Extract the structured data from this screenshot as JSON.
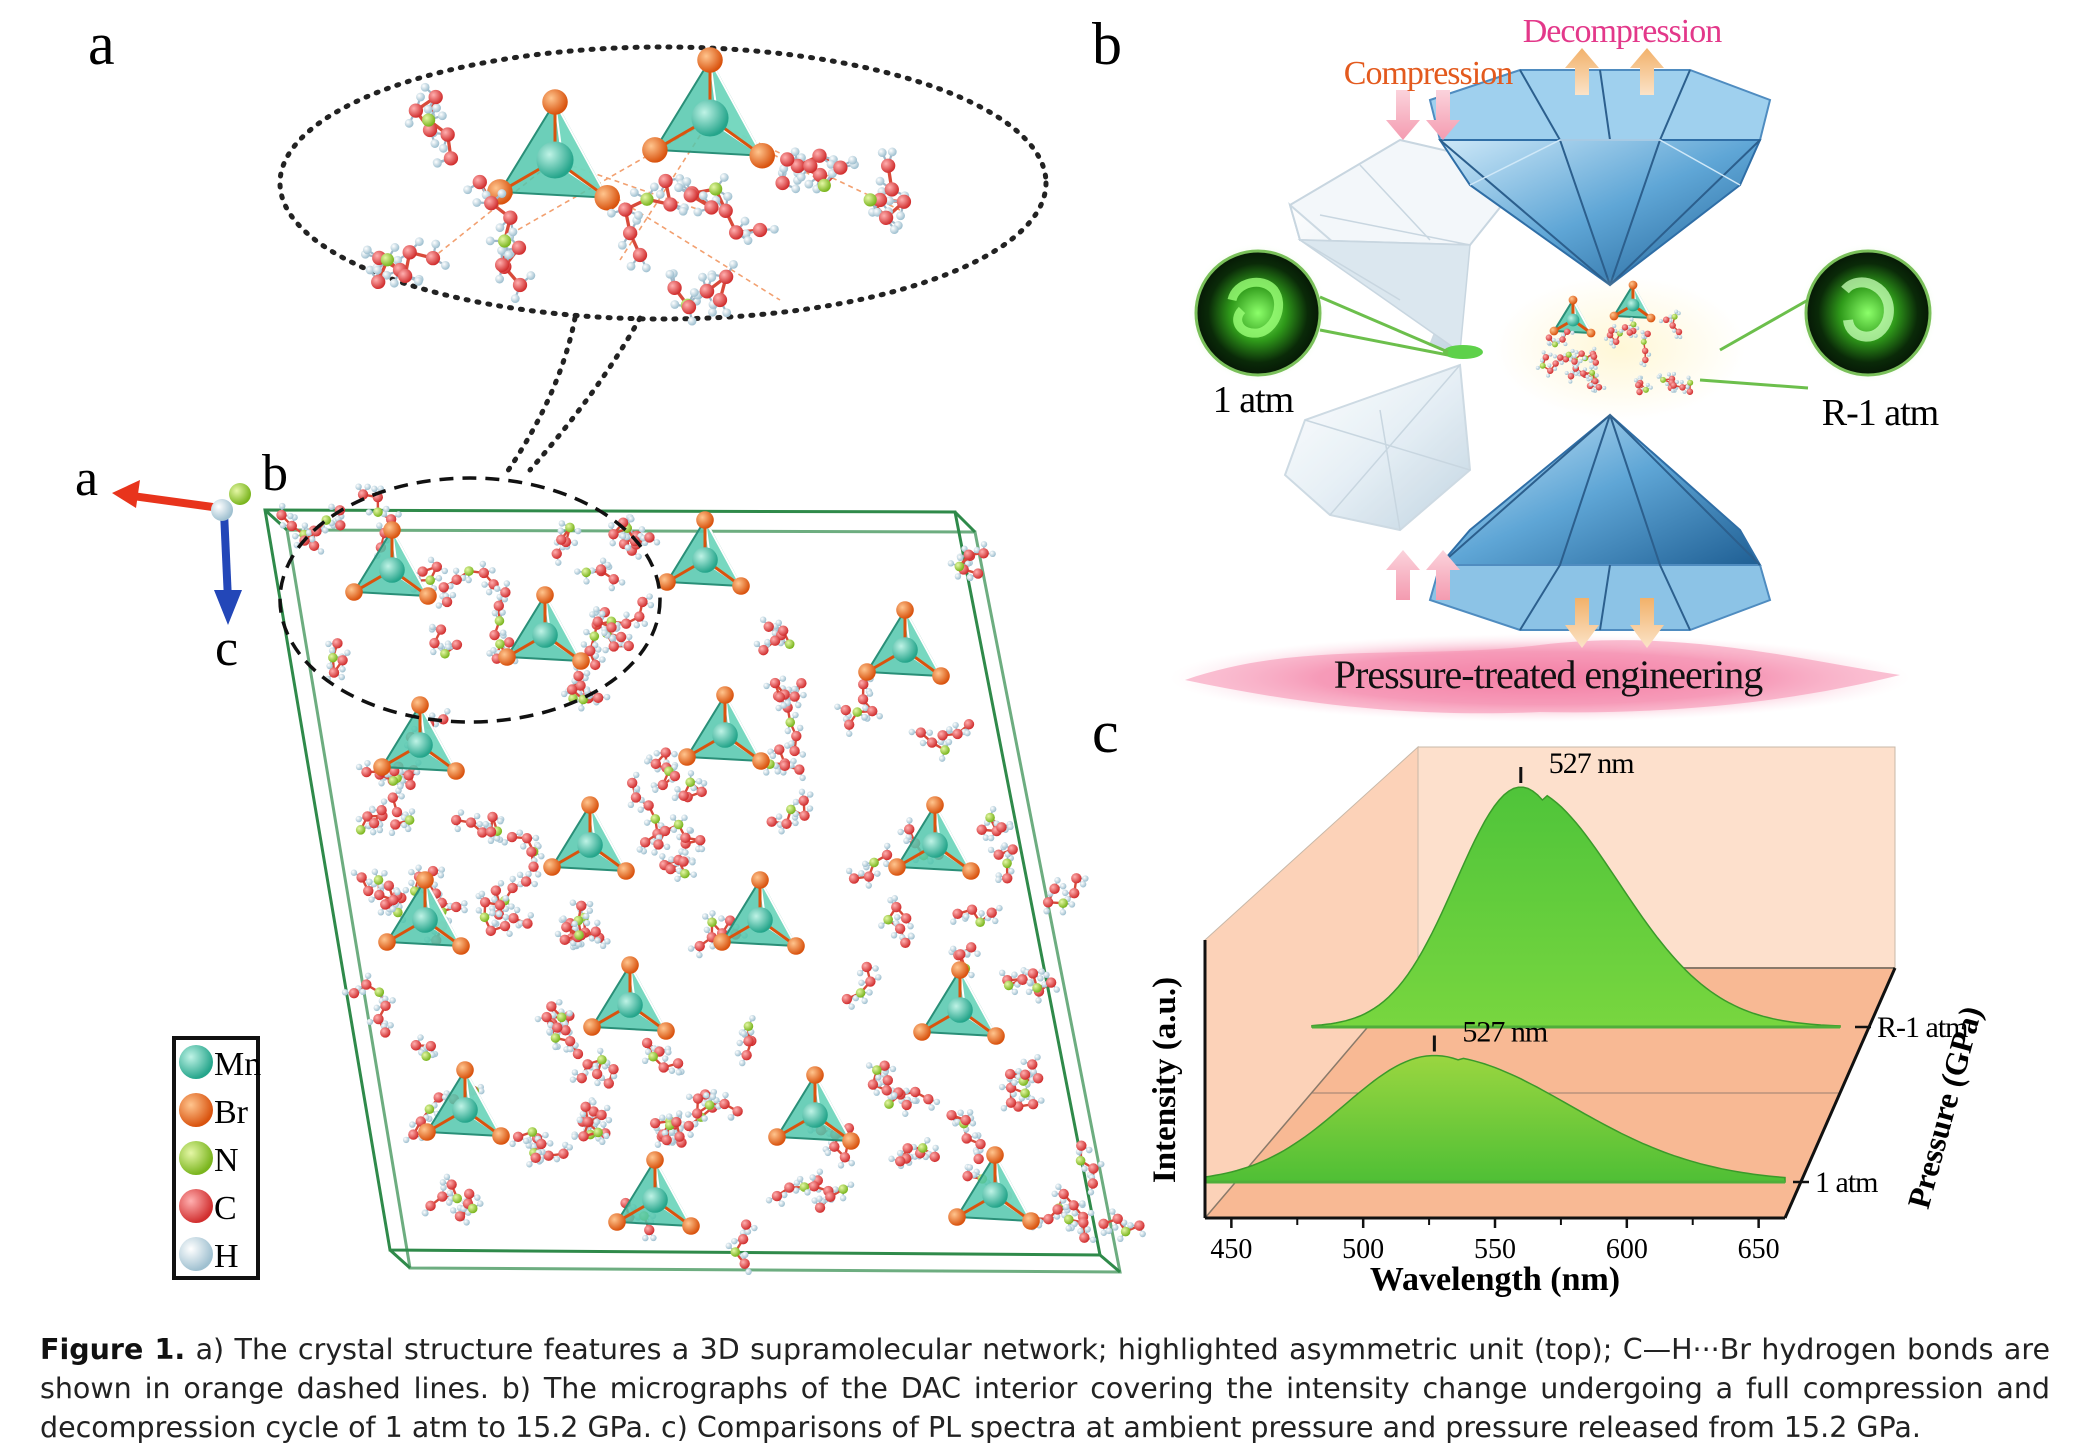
{
  "panels": {
    "a": {
      "label": "a",
      "axes": {
        "a": "a",
        "b": "b",
        "c": "c"
      },
      "legend": [
        {
          "label": "Mn",
          "color": "#3ebfa6"
        },
        {
          "label": "Br",
          "color": "#ee6a1e"
        },
        {
          "label": "N",
          "color": "#9acd32"
        },
        {
          "label": "C",
          "color": "#e84545"
        },
        {
          "label": "H",
          "color": "#d8e8f0"
        }
      ]
    },
    "b": {
      "label": "b",
      "decompression": "Decompression",
      "compression": "Compression",
      "left_state": "1 atm",
      "right_state": "R-1 atm",
      "banner": "Pressure-treated engineering"
    },
    "c": {
      "label": "c"
    }
  },
  "chart_data": {
    "type": "area",
    "xlabel": "Wavelength (nm)",
    "ylabel": "Intensity (a.u.)",
    "zlabel": "Pressure (GPa)",
    "xlim": [
      440,
      660
    ],
    "xticks": [
      450,
      500,
      550,
      600,
      650
    ],
    "series": [
      {
        "name": "1 atm",
        "peak_label": "527 nm",
        "peak_x": 527,
        "peak_height": 0.55,
        "sigma": 38
      },
      {
        "name": "R-1 atm",
        "peak_label": "527 nm",
        "peak_x": 527,
        "peak_height": 1.0,
        "sigma": 30
      }
    ]
  },
  "caption": {
    "label": "Figure 1.",
    "text": " a) The crystal structure features a 3D supramolecular network; highlighted asymmetric unit (top); C—H···Br hydrogen bonds are shown in orange dashed lines. b) The micrographs of the DAC interior covering the intensity change undergoing a full compression and decompression cycle of 1 atm to 15.2 GPa. c) Comparisons of PL spectra at ambient pressure and pressure released from 15.2 GPa."
  }
}
